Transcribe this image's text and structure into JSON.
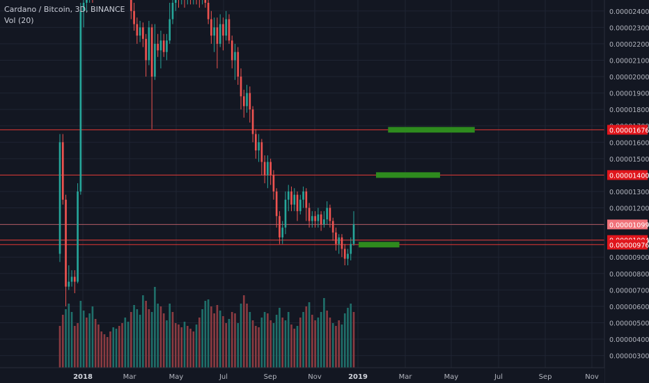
{
  "header": {
    "symbol_line": "Cardano / Bitcoin, 3D, BINANCE",
    "volume_label": "Vol (20)"
  },
  "colors": {
    "background": "#131722",
    "grid": "#1f2433",
    "axis_text": "#b2b5be",
    "up": "#26a69a",
    "down": "#ef5350",
    "vol_up": "#1f6f6a",
    "vol_down": "#8a3b41",
    "level_line": "#e53935",
    "target": "#2e8b1e",
    "label_bg": "#e0161c",
    "label_bg_light": "#f0737a"
  },
  "chart_data": {
    "type": "candlestick",
    "title": "Cardano / Bitcoin, 3D, BINANCE",
    "x_ticks": [
      "2018",
      "Mar",
      "May",
      "Jul",
      "Sep",
      "Nov",
      "2019",
      "Mar",
      "May",
      "Jul",
      "Sep",
      "Nov"
    ],
    "y_ticks": [
      "0.00000300",
      "0.00000400",
      "0.00000500",
      "0.00000600",
      "0.00000700",
      "0.00000800",
      "0.00000900",
      "0.00001000",
      "0.00001100",
      "0.00001200",
      "0.00001300",
      "0.00001400",
      "0.00001500",
      "0.00001600",
      "0.00001700",
      "0.00001800",
      "0.00001900",
      "0.00002000",
      "0.00002100",
      "0.00002200",
      "0.00002300",
      "0.00002400"
    ],
    "y_range": [
      2.6e-06,
      2.45e-05
    ],
    "price_levels": [
      {
        "value": 1.676e-05,
        "label": "0.00001676"
      },
      {
        "value": 1.4e-05,
        "label": "0.00001400"
      },
      {
        "value": 1.099e-05,
        "label": "0.00001099",
        "current": true
      },
      {
        "value": 1.004e-05,
        "label": "0.00001004"
      },
      {
        "value": 9.76e-06,
        "label": "0.00000976"
      }
    ],
    "target_zones": [
      {
        "from": "2019-02-10",
        "to": "2019-06-05",
        "price": 1.676e-05
      },
      {
        "from": "2019-01-25",
        "to": "2019-04-20",
        "price": 1.4e-05
      },
      {
        "from": "2019-01-02",
        "to": "2019-02-25",
        "price": 9.76e-06
      }
    ],
    "candles": [
      [
        9.2e-06,
        1.6e-05,
        1.65e-05,
        8.7e-06
      ],
      [
        1.6e-05,
        1.25e-05,
        1.65e-05,
        1.22e-05
      ],
      [
        1.25e-05,
        7.2e-06,
        1.28e-05,
        6e-06
      ],
      [
        7.2e-06,
        7.5e-06,
        8.5e-06,
        7e-06
      ],
      [
        7.5e-06,
        7.8e-06,
        8.2e-06,
        7.2e-06
      ],
      [
        7.8e-06,
        7.5e-06,
        8.2e-06,
        6.8e-06
      ],
      [
        7.5e-06,
        1.3e-05,
        1.35e-05,
        7.4e-06
      ],
      [
        1.3e-05,
        2.4e-05,
        2.45e-05,
        1.28e-05
      ],
      [
        2.4e-05,
        2.45e-05,
        2.5e-05,
        2.3e-05
      ],
      [
        2.45e-05,
        2.5e-05,
        2.55e-05,
        2.4e-05
      ],
      [
        2.5e-05,
        2.55e-05,
        2.6e-05,
        2.45e-05
      ],
      [
        2.55e-05,
        2.52e-05,
        2.6e-05,
        2.45e-05
      ],
      [
        2.52e-05,
        2.58e-05,
        2.62e-05,
        2.48e-05
      ],
      [
        2.58e-05,
        2.55e-05,
        2.62e-05,
        2.5e-05
      ],
      [
        2.55e-05,
        2.6e-05,
        2.65e-05,
        2.5e-05
      ],
      [
        2.6e-05,
        2.58e-05,
        2.65e-05,
        2.52e-05
      ],
      [
        2.58e-05,
        2.55e-05,
        2.62e-05,
        2.5e-05
      ],
      [
        2.55e-05,
        2.58e-05,
        2.62e-05,
        2.48e-05
      ],
      [
        2.58e-05,
        2.55e-05,
        2.62e-05,
        2.5e-05
      ],
      [
        2.55e-05,
        2.52e-05,
        2.6e-05,
        2.48e-05
      ],
      [
        2.52e-05,
        2.55e-05,
        2.6e-05,
        2.48e-05
      ],
      [
        2.55e-05,
        2.52e-05,
        2.6e-05,
        2.48e-05
      ],
      [
        2.52e-05,
        2.56e-05,
        2.6e-05,
        2.48e-05
      ],
      [
        2.56e-05,
        2.52e-05,
        2.6e-05,
        2.48e-05
      ],
      [
        2.52e-05,
        2.4e-05,
        2.55e-05,
        2.35e-05
      ],
      [
        2.4e-05,
        2.32e-05,
        2.45e-05,
        2.28e-05
      ],
      [
        2.32e-05,
        2.25e-05,
        2.36e-05,
        2.2e-05
      ],
      [
        2.25e-05,
        2.3e-05,
        2.34e-05,
        2.21e-05
      ],
      [
        2.3e-05,
        2.23e-05,
        2.33e-05,
        2.18e-05
      ],
      [
        2.23e-05,
        2.1e-05,
        2.26e-05,
        2e-05
      ],
      [
        2.1e-05,
        2.3e-05,
        2.34e-05,
        2.07e-05
      ],
      [
        2.3e-05,
        2e-05,
        2.32e-05,
        1.68e-05
      ],
      [
        2e-05,
        2.2e-05,
        2.32e-05,
        1.98e-05
      ],
      [
        2.2e-05,
        2.16e-05,
        2.26e-05,
        2.12e-05
      ],
      [
        2.16e-05,
        2.22e-05,
        2.28e-05,
        2.05e-05
      ],
      [
        2.22e-05,
        2.15e-05,
        2.26e-05,
        2.12e-05
      ],
      [
        2.15e-05,
        2.22e-05,
        2.26e-05,
        2.1e-05
      ],
      [
        2.22e-05,
        2.35e-05,
        2.45e-05,
        2.2e-05
      ],
      [
        2.35e-05,
        2.45e-05,
        2.5e-05,
        2.32e-05
      ],
      [
        2.45e-05,
        2.5e-05,
        2.55e-05,
        2.4e-05
      ],
      [
        2.5e-05,
        2.48e-05,
        2.55e-05,
        2.42e-05
      ],
      [
        2.48e-05,
        2.52e-05,
        2.58e-05,
        2.44e-05
      ],
      [
        2.52e-05,
        2.48e-05,
        2.56e-05,
        2.42e-05
      ],
      [
        2.48e-05,
        2.5e-05,
        2.56e-05,
        2.44e-05
      ],
      [
        2.5e-05,
        2.48e-05,
        2.55e-05,
        2.44e-05
      ],
      [
        2.48e-05,
        2.52e-05,
        2.56e-05,
        2.44e-05
      ],
      [
        2.52e-05,
        2.5e-05,
        2.56e-05,
        2.44e-05
      ],
      [
        2.5e-05,
        2.48e-05,
        2.55e-05,
        2.42e-05
      ],
      [
        2.48e-05,
        2.5e-05,
        2.55e-05,
        2.44e-05
      ],
      [
        2.5e-05,
        2.45e-05,
        2.54e-05,
        2.42e-05
      ],
      [
        2.45e-05,
        2.35e-05,
        2.48e-05,
        2.32e-05
      ],
      [
        2.35e-05,
        2.25e-05,
        2.4e-05,
        2.2e-05
      ],
      [
        2.25e-05,
        2.3e-05,
        2.36e-05,
        2.15e-05
      ],
      [
        2.3e-05,
        2.2e-05,
        2.36e-05,
        2.05e-05
      ],
      [
        2.2e-05,
        2.32e-05,
        2.38e-05,
        2.18e-05
      ],
      [
        2.32e-05,
        2.25e-05,
        2.36e-05,
        2.16e-05
      ],
      [
        2.25e-05,
        2.35e-05,
        2.4e-05,
        2.22e-05
      ],
      [
        2.35e-05,
        2.22e-05,
        2.38e-05,
        2.2e-05
      ],
      [
        2.22e-05,
        2.1e-05,
        2.25e-05,
        2.05e-05
      ],
      [
        2.1e-05,
        2.15e-05,
        2.2e-05,
        1.98e-05
      ],
      [
        2.15e-05,
        2e-05,
        2.18e-05,
        1.95e-05
      ],
      [
        2e-05,
        1.88e-05,
        2.05e-05,
        1.8e-05
      ],
      [
        1.88e-05,
        1.82e-05,
        1.92e-05,
        1.75e-05
      ],
      [
        1.82e-05,
        1.9e-05,
        1.95e-05,
        1.78e-05
      ],
      [
        1.9e-05,
        1.8e-05,
        1.94e-05,
        1.72e-05
      ],
      [
        1.8e-05,
        1.65e-05,
        1.82e-05,
        1.6e-05
      ],
      [
        1.65e-05,
        1.55e-05,
        1.68e-05,
        1.5e-05
      ],
      [
        1.55e-05,
        1.6e-05,
        1.65e-05,
        1.48e-05
      ],
      [
        1.6e-05,
        1.48e-05,
        1.62e-05,
        1.4e-05
      ],
      [
        1.48e-05,
        1.4e-05,
        1.52e-05,
        1.35e-05
      ],
      [
        1.4e-05,
        1.48e-05,
        1.52e-05,
        1.32e-05
      ],
      [
        1.48e-05,
        1.4e-05,
        1.5e-05,
        1.34e-05
      ],
      [
        1.4e-05,
        1.3e-05,
        1.43e-05,
        1.25e-05
      ],
      [
        1.3e-05,
        1.15e-05,
        1.32e-05,
        1.08e-05
      ],
      [
        1.15e-05,
        1.02e-05,
        1.18e-05,
        9.8e-06
      ],
      [
        1.02e-05,
        1.08e-05,
        1.12e-05,
        9.8e-06
      ],
      [
        1.08e-05,
        1.25e-05,
        1.3e-05,
        1.04e-05
      ],
      [
        1.25e-05,
        1.3e-05,
        1.34e-05,
        1.18e-05
      ],
      [
        1.3e-05,
        1.22e-05,
        1.33e-05,
        1.18e-05
      ],
      [
        1.22e-05,
        1.28e-05,
        1.32e-05,
        1.18e-05
      ],
      [
        1.28e-05,
        1.18e-05,
        1.3e-05,
        1.12e-05
      ],
      [
        1.18e-05,
        1.25e-05,
        1.28e-05,
        1.16e-05
      ],
      [
        1.25e-05,
        1.3e-05,
        1.33e-05,
        1.2e-05
      ],
      [
        1.3e-05,
        1.2e-05,
        1.32e-05,
        1.12e-05
      ],
      [
        1.2e-05,
        1.12e-05,
        1.23e-05,
        1.08e-05
      ],
      [
        1.12e-05,
        1.15e-05,
        1.18e-05,
        1.08e-05
      ],
      [
        1.15e-05,
        1.12e-05,
        1.18e-05,
        1.08e-05
      ],
      [
        1.12e-05,
        1.16e-05,
        1.2e-05,
        1.08e-05
      ],
      [
        1.16e-05,
        1.1e-05,
        1.18e-05,
        1.06e-05
      ],
      [
        1.1e-05,
        1.13e-05,
        1.18e-05,
        1.08e-05
      ],
      [
        1.13e-05,
        1.2e-05,
        1.24e-05,
        1.1e-05
      ],
      [
        1.2e-05,
        1.12e-05,
        1.22e-05,
        1.08e-05
      ],
      [
        1.12e-05,
        1.05e-05,
        1.14e-05,
        1e-05
      ],
      [
        1.05e-05,
        9.8e-06,
        1.08e-05,
        9.4e-06
      ],
      [
        9.8e-06,
        1.02e-05,
        1.04e-05,
        9.2e-06
      ],
      [
        1.02e-05,
        9.5e-06,
        1.04e-05,
        9e-06
      ],
      [
        9.5e-06,
        8.9e-06,
        9.8e-06,
        8.5e-06
      ],
      [
        8.9e-06,
        9.2e-06,
        9.5e-06,
        8.5e-06
      ],
      [
        9.2e-06,
        9.8e-06,
        1.02e-05,
        8.8e-06
      ],
      [
        9.8e-06,
        1.1e-05,
        1.18e-05,
        9.7e-06
      ]
    ],
    "volumes": [
      [
        3.0,
        0
      ],
      [
        3.8,
        0
      ],
      [
        4.2,
        1
      ],
      [
        4.6,
        1
      ],
      [
        4.0,
        1
      ],
      [
        3.0,
        0
      ],
      [
        3.2,
        0
      ],
      [
        4.8,
        1
      ],
      [
        4.1,
        1
      ],
      [
        3.6,
        0
      ],
      [
        3.9,
        1
      ],
      [
        4.4,
        1
      ],
      [
        3.5,
        0
      ],
      [
        3.1,
        0
      ],
      [
        2.6,
        0
      ],
      [
        2.4,
        0
      ],
      [
        2.2,
        0
      ],
      [
        2.6,
        0
      ],
      [
        2.9,
        1
      ],
      [
        2.8,
        1
      ],
      [
        3.0,
        0
      ],
      [
        3.2,
        0
      ],
      [
        3.6,
        1
      ],
      [
        3.3,
        1
      ],
      [
        4.0,
        0
      ],
      [
        4.5,
        1
      ],
      [
        4.2,
        1
      ],
      [
        3.8,
        1
      ],
      [
        5.2,
        1
      ],
      [
        4.8,
        0
      ],
      [
        4.2,
        0
      ],
      [
        4.0,
        1
      ],
      [
        5.8,
        1
      ],
      [
        4.6,
        1
      ],
      [
        4.4,
        0
      ],
      [
        3.9,
        0
      ],
      [
        3.4,
        1
      ],
      [
        4.6,
        1
      ],
      [
        4.0,
        0
      ],
      [
        3.2,
        0
      ],
      [
        3.1,
        0
      ],
      [
        2.9,
        0
      ],
      [
        3.3,
        1
      ],
      [
        3.0,
        0
      ],
      [
        2.8,
        0
      ],
      [
        2.6,
        0
      ],
      [
        3.1,
        1
      ],
      [
        3.6,
        0
      ],
      [
        4.2,
        1
      ],
      [
        4.8,
        1
      ],
      [
        4.9,
        1
      ],
      [
        4.4,
        0
      ],
      [
        3.9,
        0
      ],
      [
        4.5,
        0
      ],
      [
        4.1,
        1
      ],
      [
        3.7,
        0
      ],
      [
        3.2,
        0
      ],
      [
        3.5,
        1
      ],
      [
        4.0,
        0
      ],
      [
        3.9,
        0
      ],
      [
        3.2,
        1
      ],
      [
        4.6,
        1
      ],
      [
        5.2,
        0
      ],
      [
        4.6,
        0
      ],
      [
        4.0,
        1
      ],
      [
        3.4,
        0
      ],
      [
        3.0,
        0
      ],
      [
        2.9,
        0
      ],
      [
        3.6,
        1
      ],
      [
        4.0,
        1
      ],
      [
        3.9,
        0
      ],
      [
        3.4,
        0
      ],
      [
        3.2,
        1
      ],
      [
        3.8,
        1
      ],
      [
        4.3,
        1
      ],
      [
        3.6,
        0
      ],
      [
        3.4,
        1
      ],
      [
        4.0,
        1
      ],
      [
        3.1,
        0
      ],
      [
        2.8,
        0
      ],
      [
        3.0,
        1
      ],
      [
        3.6,
        0
      ],
      [
        4.0,
        1
      ],
      [
        4.4,
        0
      ],
      [
        4.7,
        1
      ],
      [
        3.8,
        0
      ],
      [
        3.4,
        0
      ],
      [
        3.6,
        1
      ],
      [
        4.0,
        1
      ],
      [
        5.0,
        1
      ],
      [
        4.1,
        0
      ],
      [
        3.6,
        0
      ],
      [
        3.2,
        1
      ],
      [
        3.0,
        0
      ],
      [
        3.4,
        0
      ],
      [
        3.1,
        1
      ],
      [
        3.9,
        1
      ],
      [
        4.3,
        1
      ],
      [
        4.6,
        1
      ],
      [
        4.0,
        0
      ]
    ]
  }
}
